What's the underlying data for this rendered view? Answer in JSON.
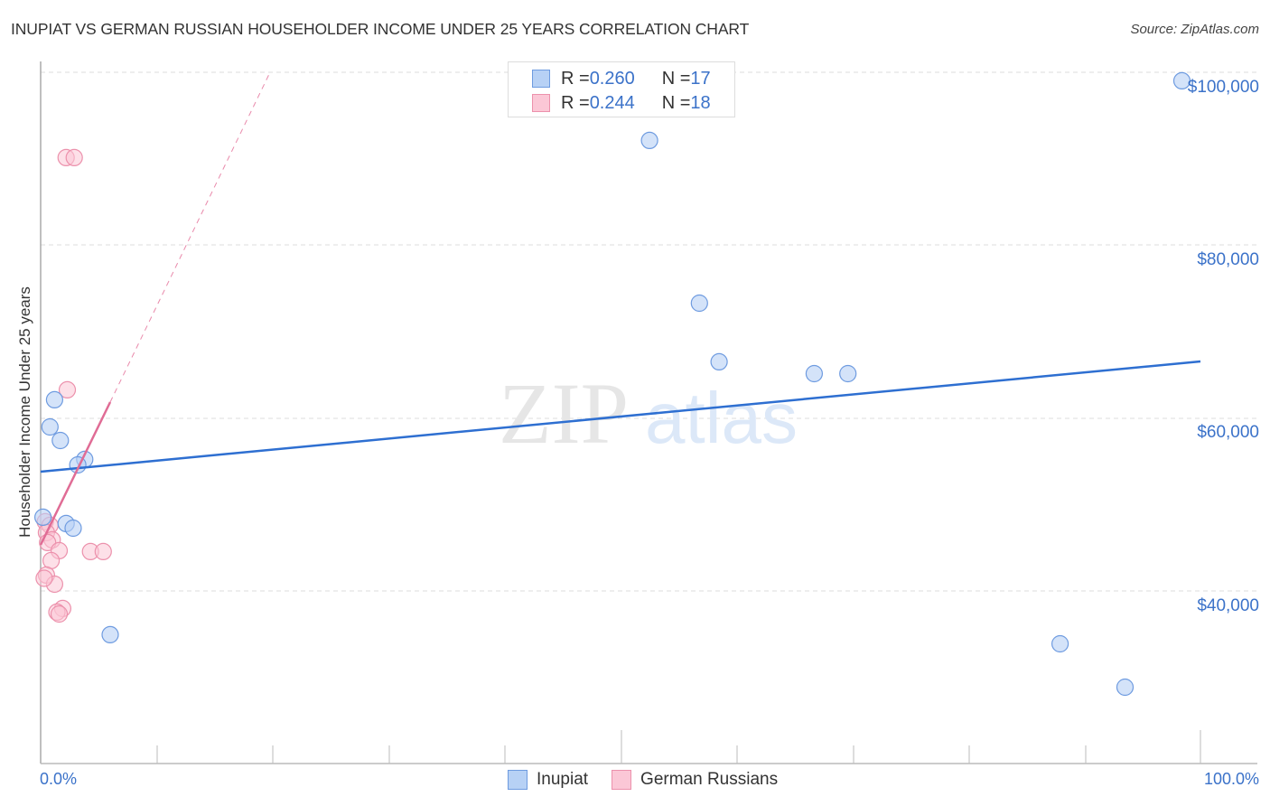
{
  "header": {
    "title": "INUPIAT VS GERMAN RUSSIAN HOUSEHOLDER INCOME UNDER 25 YEARS CORRELATION CHART",
    "source": "Source: ZipAtlas.com"
  },
  "axes": {
    "ylabel": "Householder Income Under 25 years",
    "y_ticks": [
      "$100,000",
      "$80,000",
      "$60,000",
      "$40,000"
    ],
    "x_tick_left": "0.0%",
    "x_tick_right": "100.0%"
  },
  "legend_top": {
    "rows": [
      {
        "r_label": "R = ",
        "r_value": "0.260",
        "n_label": "N = ",
        "n_value": "17"
      },
      {
        "r_label": "R = ",
        "r_value": "0.244",
        "n_label": "N = ",
        "n_value": "18"
      }
    ]
  },
  "legend_bottom": {
    "items": [
      {
        "label": "Inupiat"
      },
      {
        "label": "German Russians"
      }
    ]
  },
  "watermark": {
    "part1": "ZIP",
    "part2": "atlas"
  },
  "colors": {
    "blue_fill": "#b7d1f5",
    "blue_stroke": "#6e9be0",
    "blue_line": "#2e6fd1",
    "pink_fill": "#fbc7d6",
    "pink_stroke": "#ec91ac",
    "pink_line": "#e06c95",
    "tick_label": "#3b72c9",
    "grid": "#dddddd"
  },
  "chart_data": {
    "type": "scatter",
    "title": "INUPIAT VS GERMAN RUSSIAN HOUSEHOLDER INCOME UNDER 25 YEARS CORRELATION CHART",
    "xlabel": "",
    "ylabel": "Householder Income Under 25 years",
    "xlim": [
      0,
      100
    ],
    "ylim": [
      20000,
      103000
    ],
    "x_tick_labels": [
      "0.0%",
      "100.0%"
    ],
    "y_tick_values": [
      40000,
      60000,
      80000,
      100000
    ],
    "y_tick_labels": [
      "$40,000",
      "$60,000",
      "$80,000",
      "$100,000"
    ],
    "grid": {
      "horizontal": true,
      "style": "dashed"
    },
    "legend_position": "bottom-center",
    "series": [
      {
        "name": "Inupiat",
        "color": "#b7d1f5",
        "R": 0.26,
        "N": 17,
        "points": [
          {
            "x": 98.4,
            "y": 99060
          },
          {
            "x": 52.5,
            "y": 92160
          },
          {
            "x": 56.8,
            "y": 73330
          },
          {
            "x": 58.5,
            "y": 66540
          },
          {
            "x": 66.7,
            "y": 65180
          },
          {
            "x": 69.6,
            "y": 65180
          },
          {
            "x": 1.2,
            "y": 62150
          },
          {
            "x": 0.8,
            "y": 59010
          },
          {
            "x": 1.7,
            "y": 57440
          },
          {
            "x": 3.8,
            "y": 55250
          },
          {
            "x": 3.2,
            "y": 54620
          },
          {
            "x": 0.2,
            "y": 48560
          },
          {
            "x": 2.2,
            "y": 47830
          },
          {
            "x": 2.8,
            "y": 47300
          },
          {
            "x": 6.0,
            "y": 34970
          },
          {
            "x": 87.9,
            "y": 33920
          },
          {
            "x": 93.5,
            "y": 28900
          }
        ],
        "trendline": {
          "x": [
            0,
            100
          ],
          "y": [
            53570,
            66330
          ],
          "style": "solid"
        }
      },
      {
        "name": "German Russians",
        "color": "#fbc7d6",
        "R": 0.244,
        "N": 18,
        "points": [
          {
            "x": 2.2,
            "y": 90170
          },
          {
            "x": 2.9,
            "y": 90170
          },
          {
            "x": 2.3,
            "y": 63300
          },
          {
            "x": 0.4,
            "y": 48040
          },
          {
            "x": 0.8,
            "y": 47620
          },
          {
            "x": 0.5,
            "y": 46780
          },
          {
            "x": 1.0,
            "y": 45950
          },
          {
            "x": 0.6,
            "y": 45630
          },
          {
            "x": 1.6,
            "y": 44690
          },
          {
            "x": 4.3,
            "y": 44590
          },
          {
            "x": 5.4,
            "y": 44590
          },
          {
            "x": 0.9,
            "y": 43540
          },
          {
            "x": 0.5,
            "y": 41870
          },
          {
            "x": 1.2,
            "y": 40820
          },
          {
            "x": 1.9,
            "y": 38000
          },
          {
            "x": 1.4,
            "y": 37580
          },
          {
            "x": 1.6,
            "y": 37370
          },
          {
            "x": 0.3,
            "y": 41500
          }
        ],
        "trendline": {
          "x": [
            0,
            6.0
          ],
          "y": [
            45630,
            62150
          ],
          "style": "solid",
          "extension": {
            "x": [
              6.0,
              19.7
            ],
            "y": [
              62150,
              100000
            ],
            "style": "dashed"
          }
        }
      }
    ]
  }
}
